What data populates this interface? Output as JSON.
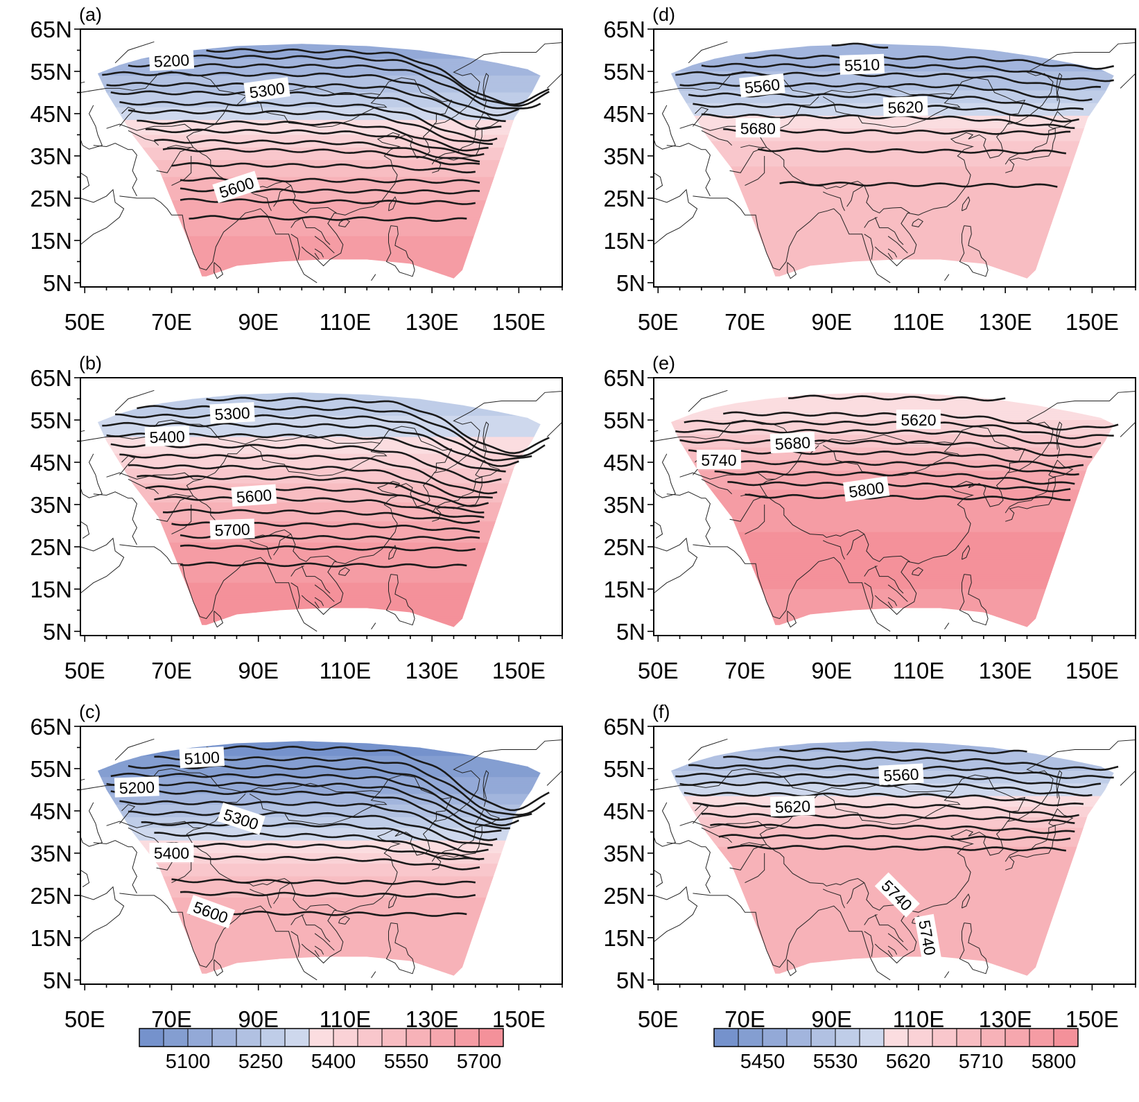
{
  "figure": {
    "x_ticks": [
      "50E",
      "70E",
      "90E",
      "110E",
      "130E",
      "150E"
    ],
    "y_ticks": [
      "65N",
      "55N",
      "45N",
      "35N",
      "25N",
      "15N",
      "5N"
    ],
    "lon_range": [
      49,
      160
    ],
    "lat_range": [
      4,
      65
    ],
    "grid": false,
    "colors": {
      "blue_dark": "#6e8cc9",
      "blue_light": "#dde4f3",
      "red_light": "#fbdde0",
      "red_dark": "#f48c95",
      "contour": "#1a1a1a",
      "coast": "#222222"
    }
  },
  "panels": [
    {
      "label": "(a)",
      "contour_labels": [
        "5200",
        "5300",
        "5600"
      ],
      "fill": [
        {
          "lat": 60,
          "v": 5150
        },
        {
          "lat": 50,
          "v": 5270
        },
        {
          "lat": 40,
          "v": 5420
        },
        {
          "lat": 33,
          "v": 5540
        },
        {
          "lat": 25,
          "v": 5620
        },
        {
          "lat": 15,
          "v": 5680
        },
        {
          "lat": 7,
          "v": 5700
        }
      ],
      "contours": [
        {
          "lat": 60,
          "start": 78,
          "end": 157,
          "dip": 12,
          "dipLon": 148
        },
        {
          "lat": 58.5,
          "start": 65,
          "end": 157,
          "dip": 11,
          "dipLon": 148
        },
        {
          "lat": 56.5,
          "start": 60,
          "end": 155,
          "dip": 10,
          "dipLon": 148
        },
        {
          "lat": 54.5,
          "start": 54,
          "end": 150,
          "dip": 9,
          "dipLon": 145
        },
        {
          "lat": 52,
          "start": 55,
          "end": 147,
          "dip": 8,
          "dipLon": 145
        },
        {
          "lat": 50,
          "start": 56,
          "end": 146,
          "dip": 8,
          "dipLon": 143
        },
        {
          "lat": 47.5,
          "start": 58,
          "end": 145,
          "dip": 8,
          "dipLon": 142
        },
        {
          "lat": 45.5,
          "start": 60,
          "end": 144,
          "dip": 7,
          "dipLon": 141
        },
        {
          "lat": 43,
          "start": 62,
          "end": 143,
          "dip": 6,
          "dipLon": 140
        },
        {
          "lat": 41,
          "start": 64,
          "end": 142,
          "dip": 5,
          "dipLon": 140
        },
        {
          "lat": 38.5,
          "start": 66,
          "end": 141,
          "dip": 4,
          "dipLon": 140
        },
        {
          "lat": 36.5,
          "start": 68,
          "end": 141,
          "dip": 3,
          "dipLon": 140
        },
        {
          "lat": 33,
          "start": 70,
          "end": 140,
          "dip": 1,
          "dipLon": 140
        },
        {
          "lat": 29.5,
          "start": 72,
          "end": 141,
          "dip": 0,
          "dipLon": 140
        },
        {
          "lat": 27,
          "start": 72,
          "end": 141,
          "dip": 0,
          "dipLon": 140
        },
        {
          "lat": 24.5,
          "start": 72,
          "end": 140,
          "dip": 0,
          "dipLon": 140
        },
        {
          "lat": 20.5,
          "start": 74,
          "end": 138,
          "dip": 0,
          "dipLon": 140
        }
      ],
      "labels": [
        {
          "lon": 70,
          "lat": 57.5,
          "rot": -3
        },
        {
          "lon": 92,
          "lat": 50.5,
          "rot": -8
        },
        {
          "lon": 85,
          "lat": 27.5,
          "rot": -18
        }
      ]
    },
    {
      "label": "(b)",
      "contour_labels": [
        "5300",
        "5400",
        "5600",
        "5700"
      ],
      "fill": [
        {
          "lat": 60,
          "v": 5280
        },
        {
          "lat": 50,
          "v": 5380
        },
        {
          "lat": 40,
          "v": 5520
        },
        {
          "lat": 33,
          "v": 5600
        },
        {
          "lat": 25,
          "v": 5680
        },
        {
          "lat": 15,
          "v": 5730
        },
        {
          "lat": 7,
          "v": 5750
        }
      ],
      "contours": [
        {
          "lat": 60,
          "start": 78,
          "end": 157,
          "dip": 12,
          "dipLon": 148
        },
        {
          "lat": 58,
          "start": 62,
          "end": 156,
          "dip": 11,
          "dipLon": 148
        },
        {
          "lat": 56,
          "start": 57,
          "end": 153,
          "dip": 10,
          "dipLon": 147
        },
        {
          "lat": 54,
          "start": 54,
          "end": 150,
          "dip": 9,
          "dipLon": 146
        },
        {
          "lat": 51.5,
          "start": 55,
          "end": 147,
          "dip": 8,
          "dipLon": 145
        },
        {
          "lat": 49,
          "start": 56,
          "end": 146,
          "dip": 8,
          "dipLon": 143
        },
        {
          "lat": 46.5,
          "start": 58,
          "end": 145,
          "dip": 8,
          "dipLon": 142
        },
        {
          "lat": 44,
          "start": 60,
          "end": 144,
          "dip": 7,
          "dipLon": 141
        },
        {
          "lat": 41.5,
          "start": 62,
          "end": 143,
          "dip": 6,
          "dipLon": 140
        },
        {
          "lat": 39,
          "start": 64,
          "end": 142,
          "dip": 5,
          "dipLon": 140
        },
        {
          "lat": 36.5,
          "start": 66,
          "end": 142,
          "dip": 4,
          "dipLon": 140
        },
        {
          "lat": 33.5,
          "start": 68,
          "end": 141,
          "dip": 2,
          "dipLon": 140
        },
        {
          "lat": 30.5,
          "start": 70,
          "end": 141,
          "dip": 1,
          "dipLon": 140
        },
        {
          "lat": 27.5,
          "start": 72,
          "end": 141,
          "dip": 0,
          "dipLon": 140
        },
        {
          "lat": 25,
          "start": 72,
          "end": 140,
          "dip": 0,
          "dipLon": 140
        },
        {
          "lat": 21,
          "start": 72,
          "end": 138,
          "dip": 0,
          "dipLon": 140
        }
      ],
      "labels": [
        {
          "lon": 84,
          "lat": 56.5,
          "rot": -3
        },
        {
          "lon": 69,
          "lat": 51,
          "rot": -2
        },
        {
          "lon": 89,
          "lat": 37,
          "rot": -4
        },
        {
          "lon": 84,
          "lat": 29,
          "rot": -2
        }
      ]
    },
    {
      "label": "(c)",
      "contour_labels": [
        "5100",
        "5200",
        "5300",
        "5400",
        "5600"
      ],
      "fill": [
        {
          "lat": 60,
          "v": 5050
        },
        {
          "lat": 50,
          "v": 5150
        },
        {
          "lat": 42,
          "v": 5300
        },
        {
          "lat": 35,
          "v": 5420
        },
        {
          "lat": 28,
          "v": 5550
        },
        {
          "lat": 20,
          "v": 5600
        },
        {
          "lat": 7,
          "v": 5620
        }
      ],
      "contours": [
        {
          "lat": 60,
          "start": 78,
          "end": 157,
          "dip": 14,
          "dipLon": 148
        },
        {
          "lat": 57.5,
          "start": 66,
          "end": 156,
          "dip": 13,
          "dipLon": 148
        },
        {
          "lat": 55.5,
          "start": 60,
          "end": 153,
          "dip": 12,
          "dipLon": 147
        },
        {
          "lat": 53.5,
          "start": 56,
          "end": 150,
          "dip": 11,
          "dipLon": 146
        },
        {
          "lat": 51.5,
          "start": 55,
          "end": 148,
          "dip": 10,
          "dipLon": 145
        },
        {
          "lat": 49.5,
          "start": 56,
          "end": 146,
          "dip": 9,
          "dipLon": 144
        },
        {
          "lat": 47,
          "start": 58,
          "end": 145,
          "dip": 8,
          "dipLon": 143
        },
        {
          "lat": 44.5,
          "start": 60,
          "end": 144,
          "dip": 7,
          "dipLon": 142
        },
        {
          "lat": 42,
          "start": 63,
          "end": 143,
          "dip": 6,
          "dipLon": 141
        },
        {
          "lat": 39.5,
          "start": 66,
          "end": 142,
          "dip": 5,
          "dipLon": 140
        },
        {
          "lat": 37,
          "start": 68,
          "end": 141,
          "dip": 3,
          "dipLon": 140
        },
        {
          "lat": 34,
          "start": 70,
          "end": 141,
          "dip": 2,
          "dipLon": 140
        },
        {
          "lat": 28.5,
          "start": 70,
          "end": 140,
          "dip": 0,
          "dipLon": 140
        },
        {
          "lat": 25.5,
          "start": 72,
          "end": 140,
          "dip": 0,
          "dipLon": 140
        },
        {
          "lat": 21,
          "start": 74,
          "end": 138,
          "dip": 0,
          "dipLon": 140
        }
      ],
      "labels": [
        {
          "lon": 77,
          "lat": 57.5,
          "rot": -3
        },
        {
          "lon": 62,
          "lat": 50.5,
          "rot": -2
        },
        {
          "lon": 86,
          "lat": 43,
          "rot": 18
        },
        {
          "lon": 70,
          "lat": 35,
          "rot": 0
        },
        {
          "lon": 79,
          "lat": 21,
          "rot": 20
        }
      ]
    },
    {
      "label": "(d)",
      "contour_labels": [
        "5510",
        "5560",
        "5620",
        "5680"
      ],
      "fill": [
        {
          "lat": 58,
          "v": 5490
        },
        {
          "lat": 50,
          "v": 5540
        },
        {
          "lat": 44,
          "v": 5600
        },
        {
          "lat": 38,
          "v": 5660
        },
        {
          "lat": 30,
          "v": 5700
        },
        {
          "lat": 20,
          "v": 5710
        },
        {
          "lat": 7,
          "v": 5705
        }
      ],
      "contours": [
        {
          "lat": 61.5,
          "start": 90,
          "end": 103,
          "dip": 0,
          "dipLon": 140
        },
        {
          "lat": 58.5,
          "start": 70,
          "end": 155,
          "dip": 2,
          "dipLon": 150
        },
        {
          "lat": 56.5,
          "start": 60,
          "end": 155,
          "dip": 3,
          "dipLon": 150
        },
        {
          "lat": 54.5,
          "start": 54,
          "end": 152,
          "dip": 3,
          "dipLon": 148
        },
        {
          "lat": 52,
          "start": 55,
          "end": 150,
          "dip": 3,
          "dipLon": 146
        },
        {
          "lat": 49.5,
          "start": 57,
          "end": 148,
          "dip": 3,
          "dipLon": 145
        },
        {
          "lat": 47,
          "start": 58,
          "end": 147,
          "dip": 3,
          "dipLon": 145
        },
        {
          "lat": 44.5,
          "start": 60,
          "end": 146,
          "dip": 2,
          "dipLon": 144
        },
        {
          "lat": 41,
          "start": 65,
          "end": 145,
          "dip": 0,
          "dipLon": 140
        },
        {
          "lat": 36.5,
          "start": 73,
          "end": 144,
          "dip": 0,
          "dipLon": 140
        },
        {
          "lat": 28.5,
          "start": 78,
          "end": 142,
          "dip": 0,
          "dipLon": 140
        }
      ],
      "labels": [
        {
          "lon": 97,
          "lat": 56.5,
          "rot": -2
        },
        {
          "lon": 74,
          "lat": 51.5,
          "rot": -6
        },
        {
          "lon": 107,
          "lat": 46.5,
          "rot": -2
        },
        {
          "lon": 73,
          "lat": 41.5,
          "rot": 0
        }
      ]
    },
    {
      "label": "(e)",
      "contour_labels": [
        "5620",
        "5680",
        "5740",
        "5800"
      ],
      "fill": [
        {
          "lat": 60,
          "v": 5600
        },
        {
          "lat": 53,
          "v": 5640
        },
        {
          "lat": 47,
          "v": 5700
        },
        {
          "lat": 42,
          "v": 5760
        },
        {
          "lat": 36,
          "v": 5790
        },
        {
          "lat": 28,
          "v": 5810
        },
        {
          "lat": 15,
          "v": 5810
        },
        {
          "lat": 7,
          "v": 5800
        }
      ],
      "contours": [
        {
          "lat": 60.5,
          "start": 80,
          "end": 130,
          "dip": 0,
          "dipLon": 140
        },
        {
          "lat": 56.5,
          "start": 65,
          "end": 156,
          "dip": 3,
          "dipLon": 145
        },
        {
          "lat": 54.5,
          "start": 56,
          "end": 155,
          "dip": 3,
          "dipLon": 147
        },
        {
          "lat": 52.5,
          "start": 54,
          "end": 152,
          "dip": 3,
          "dipLon": 146
        },
        {
          "lat": 50,
          "start": 55,
          "end": 150,
          "dip": 3,
          "dipLon": 146
        },
        {
          "lat": 47.5,
          "start": 57,
          "end": 148,
          "dip": 3,
          "dipLon": 145
        },
        {
          "lat": 45,
          "start": 60,
          "end": 147,
          "dip": 2,
          "dipLon": 145
        },
        {
          "lat": 42.5,
          "start": 63,
          "end": 146,
          "dip": 2,
          "dipLon": 144
        },
        {
          "lat": 40,
          "start": 66,
          "end": 145,
          "dip": 1,
          "dipLon": 144
        },
        {
          "lat": 37,
          "start": 70,
          "end": 145,
          "dip": 0,
          "dipLon": 144
        }
      ],
      "labels": [
        {
          "lon": 110,
          "lat": 55,
          "rot": 0
        },
        {
          "lon": 81,
          "lat": 49.5,
          "rot": -3
        },
        {
          "lon": 64,
          "lat": 45.5,
          "rot": 0
        },
        {
          "lon": 98,
          "lat": 38.5,
          "rot": -8
        }
      ]
    },
    {
      "label": "(f)",
      "contour_labels": [
        "5560",
        "5620",
        "5740",
        "5740"
      ],
      "fill": [
        {
          "lat": 60,
          "v": 5500
        },
        {
          "lat": 54,
          "v": 5540
        },
        {
          "lat": 49,
          "v": 5590
        },
        {
          "lat": 44,
          "v": 5650
        },
        {
          "lat": 39,
          "v": 5710
        },
        {
          "lat": 30,
          "v": 5740
        },
        {
          "lat": 15,
          "v": 5745
        },
        {
          "lat": 7,
          "v": 5740
        }
      ],
      "contours": [
        {
          "lat": 59.5,
          "start": 78,
          "end": 135,
          "dip": 0,
          "dipLon": 140
        },
        {
          "lat": 57.5,
          "start": 65,
          "end": 156,
          "dip": 2,
          "dipLon": 148
        },
        {
          "lat": 55.5,
          "start": 57,
          "end": 155,
          "dip": 2,
          "dipLon": 148
        },
        {
          "lat": 53.5,
          "start": 54,
          "end": 152,
          "dip": 2,
          "dipLon": 147
        },
        {
          "lat": 51.5,
          "start": 55,
          "end": 150,
          "dip": 2,
          "dipLon": 146
        },
        {
          "lat": 49,
          "start": 56,
          "end": 148,
          "dip": 2,
          "dipLon": 146
        },
        {
          "lat": 46.5,
          "start": 58,
          "end": 147,
          "dip": 2,
          "dipLon": 145
        },
        {
          "lat": 44,
          "start": 60,
          "end": 146,
          "dip": 1,
          "dipLon": 145
        },
        {
          "lat": 41.5,
          "start": 62,
          "end": 146,
          "dip": 1,
          "dipLon": 145
        },
        {
          "lat": 39,
          "start": 64,
          "end": 145,
          "dip": 0,
          "dipLon": 145
        },
        {
          "lat": 36.5,
          "start": 66,
          "end": 144,
          "dip": 0,
          "dipLon": 145
        }
      ],
      "labels": [
        {
          "lon": 106,
          "lat": 53.5,
          "rot": -3
        },
        {
          "lon": 81,
          "lat": 46,
          "rot": -2
        },
        {
          "lon": 105,
          "lat": 25,
          "rot": 45
        },
        {
          "lon": 112,
          "lat": 15,
          "rot": 80
        }
      ]
    }
  ],
  "colorbars": [
    {
      "labels": [
        "5100",
        "5250",
        "5400",
        "5550",
        "5700"
      ],
      "min": 5025,
      "max": 5775,
      "n": 15
    },
    {
      "labels": [
        "5450",
        "5530",
        "5620",
        "5710",
        "5800"
      ],
      "min": 5390,
      "max": 5840,
      "n": 15
    }
  ],
  "chart_data": [
    {
      "type": "heatmap",
      "title": "(a)",
      "xlabel": "",
      "ylabel": "",
      "contour_levels_labeled": [
        5200,
        5300,
        5600
      ],
      "color_scale": "colorbar 1",
      "x_range": [
        "50E",
        "150E"
      ],
      "y_range": [
        "5N",
        "65N"
      ]
    },
    {
      "type": "heatmap",
      "title": "(b)",
      "xlabel": "",
      "ylabel": "",
      "contour_levels_labeled": [
        5300,
        5400,
        5600,
        5700
      ],
      "color_scale": "colorbar 1",
      "x_range": [
        "50E",
        "150E"
      ],
      "y_range": [
        "5N",
        "65N"
      ]
    },
    {
      "type": "heatmap",
      "title": "(c)",
      "xlabel": "",
      "ylabel": "",
      "contour_levels_labeled": [
        5100,
        5200,
        5300,
        5400,
        5600
      ],
      "color_scale": "colorbar 1",
      "x_range": [
        "50E",
        "150E"
      ],
      "y_range": [
        "5N",
        "65N"
      ]
    },
    {
      "type": "heatmap",
      "title": "(d)",
      "xlabel": "",
      "ylabel": "",
      "contour_levels_labeled": [
        5510,
        5560,
        5620,
        5680
      ],
      "color_scale": "colorbar 2",
      "x_range": [
        "50E",
        "150E"
      ],
      "y_range": [
        "5N",
        "65N"
      ]
    },
    {
      "type": "heatmap",
      "title": "(e)",
      "xlabel": "",
      "ylabel": "",
      "contour_levels_labeled": [
        5620,
        5680,
        5740,
        5800
      ],
      "color_scale": "colorbar 2",
      "x_range": [
        "50E",
        "150E"
      ],
      "y_range": [
        "5N",
        "65N"
      ]
    },
    {
      "type": "heatmap",
      "title": "(f)",
      "xlabel": "",
      "ylabel": "",
      "contour_levels_labeled": [
        5560,
        5620,
        5740
      ],
      "color_scale": "colorbar 2",
      "x_range": [
        "50E",
        "150E"
      ],
      "y_range": [
        "5N",
        "65N"
      ]
    }
  ]
}
